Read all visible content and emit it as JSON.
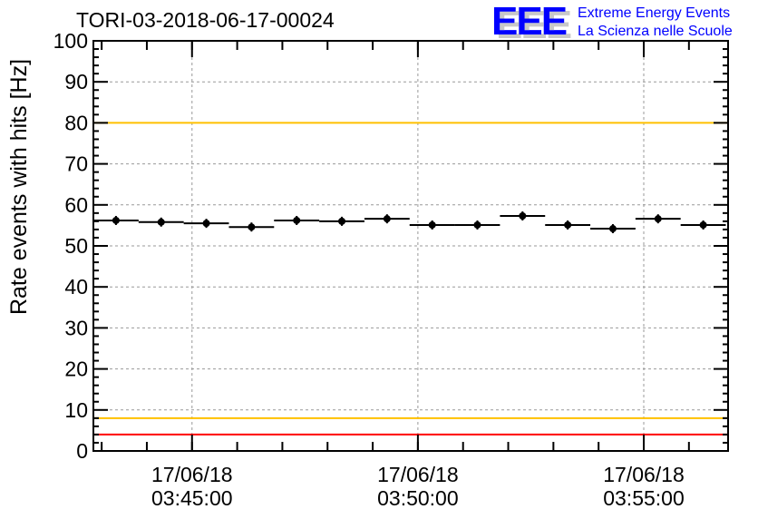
{
  "chart_data": {
    "type": "scatter",
    "title": "TORI-03-2018-06-17-00024",
    "xlabel": "",
    "ylabel": "Rate events with hits [Hz]",
    "ylim": [
      0,
      100
    ],
    "xlim": [
      "03:42:49",
      "03:56:52"
    ],
    "grid": true,
    "bin_width_seconds": 60,
    "x": [
      "03:43:19",
      "03:44:19",
      "03:45:19",
      "03:46:19",
      "03:47:19",
      "03:48:19",
      "03:49:19",
      "03:50:19",
      "03:51:19",
      "03:52:19",
      "03:53:19",
      "03:54:19",
      "03:55:19",
      "03:56:19"
    ],
    "values": [
      56.2,
      55.8,
      55.5,
      54.6,
      56.2,
      56.0,
      56.6,
      55.1,
      55.1,
      57.3,
      55.1,
      54.2,
      56.6,
      55.1
    ],
    "yticks": [
      0,
      10,
      20,
      30,
      40,
      50,
      60,
      70,
      80,
      90,
      100
    ],
    "xticks": [
      {
        "time": "03:45:00",
        "date_label": "17/06/18",
        "time_label": "03:45:00"
      },
      {
        "time": "03:50:00",
        "date_label": "17/06/18",
        "time_label": "03:50:00"
      },
      {
        "time": "03:55:00",
        "date_label": "17/06/18",
        "time_label": "03:55:00"
      }
    ],
    "reference_lines": [
      {
        "value": 100,
        "color": "#ff0000"
      },
      {
        "value": 80,
        "color": "#ffc000"
      },
      {
        "value": 8,
        "color": "#ffc000"
      },
      {
        "value": 4,
        "color": "#ff0000"
      }
    ]
  },
  "logo": {
    "letters": "EEE",
    "line1": "Extreme Energy Events",
    "line2": "La Scienza nelle Scuole",
    "color": "#0000ff"
  }
}
